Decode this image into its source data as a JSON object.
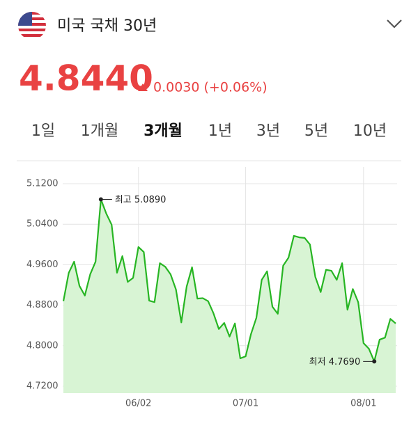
{
  "header": {
    "title": "미국 국채 30년"
  },
  "quote": {
    "price": "4.8440",
    "change": "0.0030 (+0.06%)"
  },
  "tabs": [
    "1일",
    "1개월",
    "3개월",
    "1년",
    "3년",
    "5년",
    "10년"
  ],
  "selected_tab": "3개월",
  "chart_data": {
    "type": "line",
    "categories": [
      null,
      null,
      null,
      null,
      null,
      null,
      null,
      null,
      null,
      null,
      null,
      null,
      null,
      null,
      "06/02",
      null,
      null,
      null,
      null,
      null,
      null,
      null,
      null,
      null,
      null,
      null,
      null,
      null,
      null,
      null,
      null,
      null,
      null,
      null,
      "07/01",
      null,
      null,
      null,
      null,
      null,
      null,
      null,
      null,
      null,
      null,
      null,
      null,
      null,
      null,
      null,
      null,
      null,
      null,
      null,
      null,
      null,
      "08/01",
      null,
      null,
      null,
      null,
      null,
      null
    ],
    "series": [
      {
        "name": "미국 국채 30년",
        "color": "#27b523",
        "values": [
          4.888,
          4.944,
          4.966,
          4.918,
          4.899,
          4.941,
          4.966,
          5.089,
          5.061,
          5.039,
          4.944,
          4.977,
          4.926,
          4.934,
          4.995,
          4.985,
          4.889,
          4.886,
          4.963,
          4.956,
          4.941,
          4.911,
          4.846,
          4.917,
          4.955,
          4.893,
          4.894,
          4.888,
          4.864,
          4.833,
          4.845,
          4.818,
          4.844,
          4.775,
          4.779,
          4.823,
          4.855,
          4.93,
          4.947,
          4.877,
          4.863,
          4.958,
          4.974,
          5.017,
          5.014,
          5.013,
          5.0,
          4.936,
          4.906,
          4.95,
          4.948,
          4.93,
          4.963,
          4.871,
          4.912,
          4.886,
          4.805,
          4.794,
          4.769,
          4.812,
          4.816,
          4.853,
          4.844
        ]
      }
    ],
    "ylim": [
      4.72,
      5.12
    ],
    "yticks": [
      {
        "value": 4.72,
        "label": "4.7200"
      },
      {
        "value": 4.8,
        "label": "4.8000"
      },
      {
        "value": 4.88,
        "label": "4.8800"
      },
      {
        "value": 4.96,
        "label": "4.9600"
      },
      {
        "value": 5.04,
        "label": "5.0400"
      },
      {
        "value": 5.12,
        "label": "5.1200"
      }
    ],
    "grid": true,
    "annotations": [
      {
        "text": "최고 5.0890"
      },
      {
        "text": "최저 4.7690"
      }
    ]
  }
}
